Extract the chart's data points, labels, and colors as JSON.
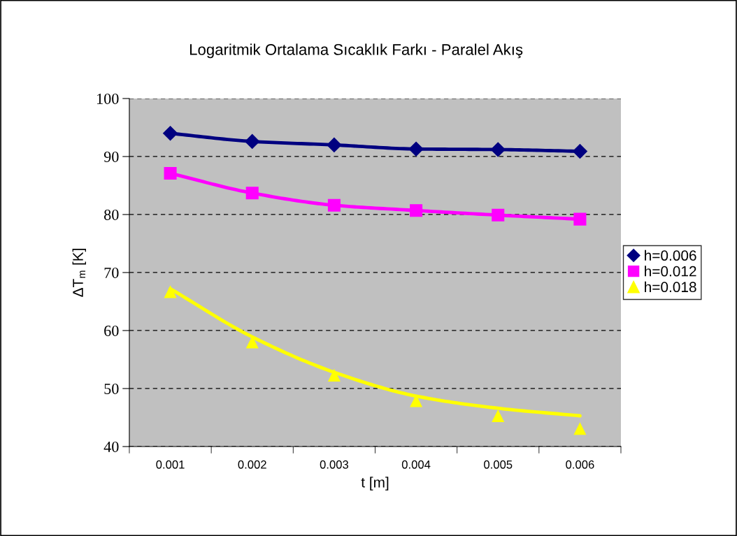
{
  "chart_data": {
    "type": "line",
    "title": "Logaritmik Ortalama Sıcaklık Farkı - Paralel Akış",
    "xlabel": "t [m]",
    "ylabel": "ΔT$_{m}$ [K]",
    "categories": [
      "0.001",
      "0.002",
      "0.003",
      "0.004",
      "0.005",
      "0.006"
    ],
    "series": [
      {
        "name": "h=0.006",
        "marker": "diamond",
        "color": "#000080",
        "values": [
          94.0,
          92.6,
          92.0,
          91.3,
          91.2,
          90.9
        ]
      },
      {
        "name": "h=0.012",
        "marker": "square",
        "color": "#ff00ff",
        "values": [
          87.1,
          83.7,
          81.6,
          80.7,
          79.9,
          79.2
        ]
      },
      {
        "name": "h=0.018",
        "type": "scatter",
        "marker": "triangle",
        "color": "#ffff00",
        "values": [
          66.7,
          58.0,
          52.3,
          47.9,
          45.3,
          43.1
        ]
      },
      {
        "type": "line",
        "marker": "none",
        "color": "#ffff00",
        "x": [
          "0.001",
          "0.002",
          "0.003",
          "0.004",
          "0.005",
          "0.006"
        ],
        "values": [
          67.2,
          58.9,
          52.8,
          48.7,
          46.6,
          45.3
        ]
      }
    ],
    "ylim": [
      40,
      100
    ],
    "yticks": [
      40,
      50,
      60,
      70,
      80,
      90,
      100
    ],
    "grid": "y",
    "legend": "right",
    "line_style": "solid"
  }
}
